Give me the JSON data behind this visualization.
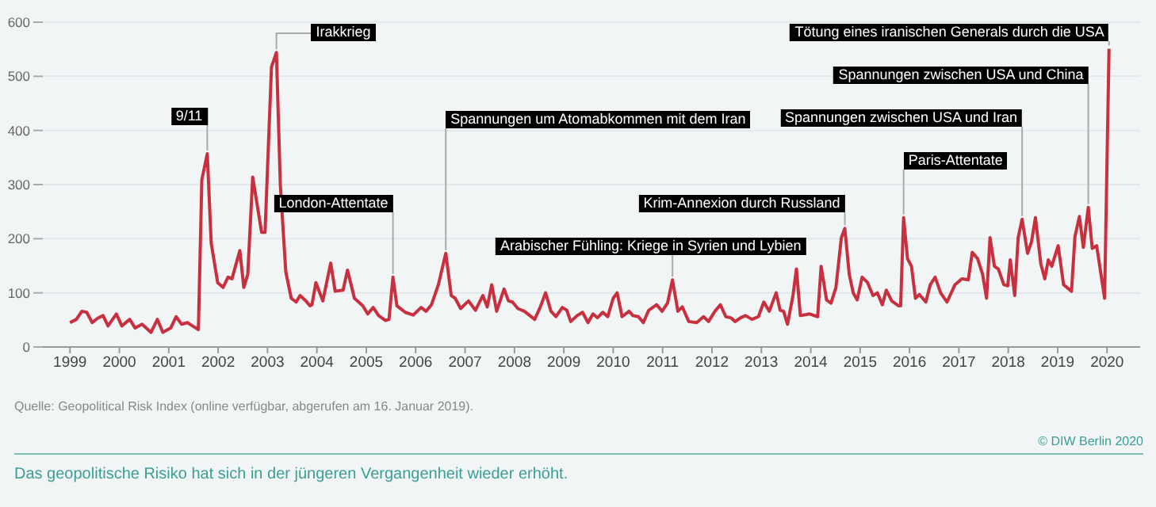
{
  "chart_data": {
    "type": "line",
    "xlim": [
      1998.45,
      2020.67
    ],
    "ylim": [
      0,
      600
    ],
    "xticks": [
      1999,
      2000,
      2001,
      2002,
      2003,
      2004,
      2005,
      2006,
      2007,
      2008,
      2009,
      2010,
      2011,
      2012,
      2013,
      2014,
      2015,
      2016,
      2017,
      2018,
      2019,
      2020
    ],
    "yticks": [
      0,
      100,
      200,
      300,
      400,
      500,
      600
    ],
    "grid": "y",
    "marker": "none",
    "line_style": "solid",
    "x": [
      1999.0,
      1999.13,
      1999.24,
      1999.34,
      1999.45,
      1999.56,
      1999.67,
      1999.77,
      1999.94,
      2000.05,
      2000.21,
      2000.32,
      2000.46,
      2000.64,
      2000.77,
      2000.88,
      2001.04,
      2001.15,
      2001.26,
      2001.38,
      2001.48,
      2001.6,
      2001.67,
      2001.78,
      2001.86,
      2001.99,
      2002.1,
      2002.2,
      2002.28,
      2002.44,
      2002.52,
      2002.6,
      2002.7,
      2002.88,
      2002.95,
      2003.08,
      2003.18,
      2003.26,
      2003.37,
      2003.48,
      2003.58,
      2003.66,
      2003.78,
      2003.86,
      2003.9,
      2003.98,
      2004.12,
      2004.28,
      2004.37,
      2004.53,
      2004.62,
      2004.76,
      2004.93,
      2005.03,
      2005.14,
      2005.25,
      2005.39,
      2005.46,
      2005.54,
      2005.62,
      2005.79,
      2005.95,
      2006.11,
      2006.21,
      2006.32,
      2006.46,
      2006.61,
      2006.72,
      2006.8,
      2006.91,
      2007.07,
      2007.21,
      2007.36,
      2007.45,
      2007.54,
      2007.64,
      2007.79,
      2007.88,
      2007.96,
      2008.07,
      2008.2,
      2008.41,
      2008.52,
      2008.63,
      2008.74,
      2008.84,
      2008.97,
      2009.06,
      2009.14,
      2009.27,
      2009.38,
      2009.49,
      2009.59,
      2009.68,
      2009.79,
      2009.89,
      2010.0,
      2010.08,
      2010.18,
      2010.32,
      2010.4,
      2010.51,
      2010.61,
      2010.72,
      2010.88,
      2010.99,
      2011.1,
      2011.2,
      2011.31,
      2011.4,
      2011.53,
      2011.69,
      2011.83,
      2011.93,
      2012.06,
      2012.17,
      2012.28,
      2012.38,
      2012.47,
      2012.58,
      2012.68,
      2012.81,
      2012.94,
      2013.05,
      2013.16,
      2013.3,
      2013.38,
      2013.45,
      2013.53,
      2013.64,
      2013.71,
      2013.79,
      2013.98,
      2014.14,
      2014.21,
      2014.32,
      2014.41,
      2014.51,
      2014.62,
      2014.69,
      2014.78,
      2014.86,
      2014.94,
      2015.04,
      2015.15,
      2015.26,
      2015.35,
      2015.45,
      2015.53,
      2015.64,
      2015.78,
      2015.82,
      2015.88,
      2015.96,
      2016.04,
      2016.12,
      2016.2,
      2016.33,
      2016.42,
      2016.52,
      2016.63,
      2016.76,
      2016.92,
      2017.06,
      2017.19,
      2017.27,
      2017.38,
      2017.48,
      2017.56,
      2017.63,
      2017.72,
      2017.8,
      2017.91,
      2017.99,
      2018.04,
      2018.13,
      2018.2,
      2018.28,
      2018.39,
      2018.47,
      2018.55,
      2018.66,
      2018.74,
      2018.81,
      2018.88,
      2019.01,
      2019.12,
      2019.28,
      2019.35,
      2019.44,
      2019.52,
      2019.62,
      2019.7,
      2019.79,
      2019.95,
      2020.04
    ],
    "series": [
      {
        "color": "#c8303f",
        "values": [
          45,
          51,
          66,
          64,
          45,
          53,
          58,
          39,
          61,
          39,
          51,
          35,
          42,
          27,
          51,
          27,
          35,
          56,
          42,
          45,
          39,
          32,
          309,
          357,
          192,
          119,
          110,
          129,
          126,
          178,
          110,
          134,
          314,
          212,
          212,
          517,
          544,
          299,
          139,
          90,
          83,
          95,
          85,
          76,
          78,
          119,
          85,
          155,
          103,
          105,
          142,
          90,
          76,
          61,
          73,
          58,
          49,
          51,
          129,
          76,
          64,
          59,
          73,
          66,
          78,
          115,
          173,
          95,
          90,
          71,
          85,
          68,
          95,
          74,
          115,
          66,
          107,
          85,
          83,
          71,
          66,
          51,
          73,
          100,
          66,
          56,
          73,
          68,
          47,
          58,
          64,
          45,
          61,
          54,
          64,
          56,
          90,
          100,
          56,
          66,
          58,
          56,
          45,
          68,
          78,
          66,
          81,
          124,
          66,
          74,
          47,
          45,
          56,
          47,
          66,
          78,
          56,
          54,
          47,
          54,
          58,
          51,
          56,
          83,
          66,
          100,
          68,
          66,
          42,
          95,
          144,
          58,
          61,
          56,
          149,
          87,
          81,
          110,
          202,
          219,
          134,
          100,
          87,
          129,
          119,
          95,
          100,
          78,
          105,
          85,
          76,
          76,
          239,
          163,
          149,
          90,
          97,
          83,
          115,
          129,
          100,
          83,
          115,
          126,
          124,
          175,
          163,
          134,
          90,
          202,
          149,
          144,
          115,
          113,
          161,
          95,
          202,
          236,
          173,
          194,
          239,
          153,
          126,
          161,
          149,
          187,
          115,
          103,
          204,
          241,
          184,
          258,
          182,
          187,
          90,
          551
        ]
      }
    ],
    "annotations": [
      {
        "text": "9/11",
        "x": 2001.78,
        "y": 357
      },
      {
        "text": "Irakkrieg",
        "x": 2003.18,
        "y": 544
      },
      {
        "text": "London-Attentate",
        "x": 2005.54,
        "y": 129
      },
      {
        "text": "Spannungen um Atomabkommen mit dem Iran",
        "x": 2006.61,
        "y": 173
      },
      {
        "text": "Arabischer Fühling: Kriege in Syrien und Lybien",
        "x": 2011.2,
        "y": 124
      },
      {
        "text": "Krim-Annexion durch Russland",
        "x": 2014.69,
        "y": 219
      },
      {
        "text": "Paris-Attentate",
        "x": 2015.88,
        "y": 239
      },
      {
        "text": "Spannungen zwischen USA und Iran",
        "x": 2018.28,
        "y": 236
      },
      {
        "text": "Spannungen zwischen USA und China",
        "x": 2019.62,
        "y": 258
      },
      {
        "text": "Tötung eines iranischen Generals durch die USA",
        "x": 2020.04,
        "y": 551
      },
      "Quelle: Geopolitical Risk Index (online verfügbar, abgerufen am 16. Januar 2019).",
      "© DIW Berlin 2020",
      "Das geopolitische Risiko hat sich in der jüngeren Vergangenheit wieder erhöht."
    ]
  }
}
